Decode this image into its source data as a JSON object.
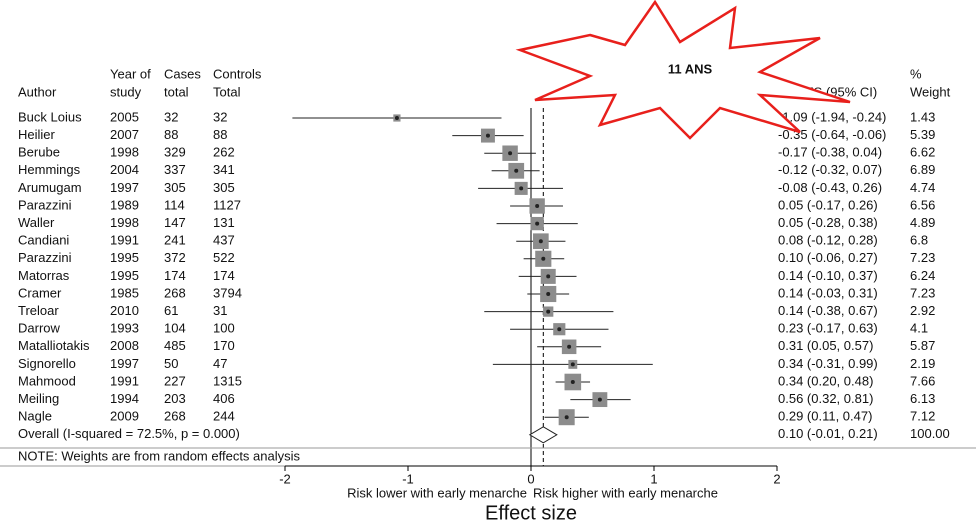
{
  "chart_data": {
    "type": "forest",
    "annotation": "11 ANS",
    "columns": {
      "author": [
        "Author"
      ],
      "year": [
        "Year of",
        "study"
      ],
      "cases": [
        "Cases",
        "total"
      ],
      "controls": [
        "Controls",
        "Total"
      ],
      "es": [
        "ES (95% CI)"
      ],
      "weight": [
        "%",
        "Weight"
      ]
    },
    "studies": [
      {
        "author": "Buck Loius",
        "year": 2005,
        "cases": 32,
        "controls": 32,
        "es": -1.09,
        "ci": [
          -1.94,
          -0.24
        ],
        "es_label": "-1.09 (-1.94, -0.24)",
        "weight": 1.43
      },
      {
        "author": "Heilier",
        "year": 2007,
        "cases": 88,
        "controls": 88,
        "es": -0.35,
        "ci": [
          -0.64,
          -0.06
        ],
        "es_label": "-0.35 (-0.64, -0.06)",
        "weight": 5.39
      },
      {
        "author": "Berube",
        "year": 1998,
        "cases": 329,
        "controls": 262,
        "es": -0.17,
        "ci": [
          -0.38,
          0.04
        ],
        "es_label": "-0.17 (-0.38, 0.04)",
        "weight": 6.62
      },
      {
        "author": "Hemmings",
        "year": 2004,
        "cases": 337,
        "controls": 341,
        "es": -0.12,
        "ci": [
          -0.32,
          0.07
        ],
        "es_label": "-0.12 (-0.32, 0.07)",
        "weight": 6.89
      },
      {
        "author": "Arumugam",
        "year": 1997,
        "cases": 305,
        "controls": 305,
        "es": -0.08,
        "ci": [
          -0.43,
          0.26
        ],
        "es_label": "-0.08 (-0.43, 0.26)",
        "weight": 4.74
      },
      {
        "author": "Parazzini",
        "year": 1989,
        "cases": 114,
        "controls": 1127,
        "es": 0.05,
        "ci": [
          -0.17,
          0.26
        ],
        "es_label": "0.05 (-0.17, 0.26)",
        "weight": 6.56
      },
      {
        "author": "Waller",
        "year": 1998,
        "cases": 147,
        "controls": 131,
        "es": 0.05,
        "ci": [
          -0.28,
          0.38
        ],
        "es_label": "0.05 (-0.28, 0.38)",
        "weight": 4.89
      },
      {
        "author": "Candiani",
        "year": 1991,
        "cases": 241,
        "controls": 437,
        "es": 0.08,
        "ci": [
          -0.12,
          0.28
        ],
        "es_label": "0.08 (-0.12, 0.28)",
        "weight": 6.8
      },
      {
        "author": "Parazzini",
        "year": 1995,
        "cases": 372,
        "controls": 522,
        "es": 0.1,
        "ci": [
          -0.06,
          0.27
        ],
        "es_label": "0.10 (-0.06, 0.27)",
        "weight": 7.23
      },
      {
        "author": "Matorras",
        "year": 1995,
        "cases": 174,
        "controls": 174,
        "es": 0.14,
        "ci": [
          -0.1,
          0.37
        ],
        "es_label": "0.14 (-0.10, 0.37)",
        "weight": 6.24
      },
      {
        "author": "Cramer",
        "year": 1985,
        "cases": 268,
        "controls": 3794,
        "es": 0.14,
        "ci": [
          -0.03,
          0.31
        ],
        "es_label": "0.14 (-0.03, 0.31)",
        "weight": 7.23
      },
      {
        "author": "Treloar",
        "year": 2010,
        "cases": 61,
        "controls": 31,
        "es": 0.14,
        "ci": [
          -0.38,
          0.67
        ],
        "es_label": "0.14 (-0.38, 0.67)",
        "weight": 2.92
      },
      {
        "author": "Darrow",
        "year": 1993,
        "cases": 104,
        "controls": 100,
        "es": 0.23,
        "ci": [
          -0.17,
          0.63
        ],
        "es_label": "0.23 (-0.17, 0.63)",
        "weight": 4.1
      },
      {
        "author": "Matalliotakis",
        "year": 2008,
        "cases": 485,
        "controls": 170,
        "es": 0.31,
        "ci": [
          0.05,
          0.57
        ],
        "es_label": "0.31 (0.05, 0.57)",
        "weight": 5.87
      },
      {
        "author": "Signorello",
        "year": 1997,
        "cases": 50,
        "controls": 47,
        "es": 0.34,
        "ci": [
          -0.31,
          0.99
        ],
        "es_label": "0.34 (-0.31, 0.99)",
        "weight": 2.19
      },
      {
        "author": "Mahmood",
        "year": 1991,
        "cases": 227,
        "controls": 1315,
        "es": 0.34,
        "ci": [
          0.2,
          0.48
        ],
        "es_label": "0.34 (0.20, 0.48)",
        "weight": 7.66
      },
      {
        "author": "Meiling",
        "year": 1994,
        "cases": 203,
        "controls": 406,
        "es": 0.56,
        "ci": [
          0.32,
          0.81
        ],
        "es_label": "0.56 (0.32, 0.81)",
        "weight": 6.13
      },
      {
        "author": "Nagle",
        "year": 2009,
        "cases": 268,
        "controls": 244,
        "es": 0.29,
        "ci": [
          0.11,
          0.47
        ],
        "es_label": "0.29 (0.11, 0.47)",
        "weight": 7.12
      }
    ],
    "overall": {
      "label": "Overall  (I-squared = 72.5%, p = 0.000)",
      "es": 0.1,
      "ci": [
        -0.01,
        0.21
      ],
      "es_label": "0.10 (-0.01, 0.21)",
      "weight": {
        "value": 100,
        "label": "100.00"
      }
    },
    "note": "NOTE: Weights are from random effects analysis",
    "xlim": [
      -2,
      2
    ],
    "xticks": [
      -2,
      -1,
      0,
      1,
      2
    ],
    "x_left_label": "Risk lower with early menarche",
    "x_right_label": "Risk higher with early menarche",
    "xlabel": "Effect size",
    "box_color": "#8c8c8c"
  }
}
